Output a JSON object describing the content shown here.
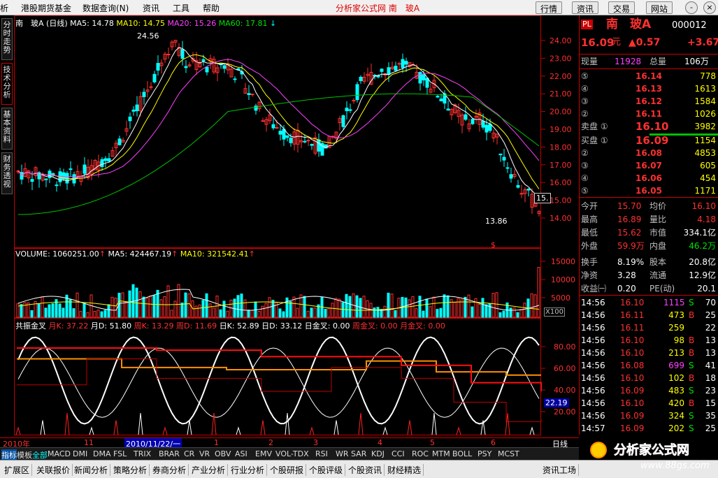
{
  "menu": {
    "items": [
      "析",
      "港股期货基金",
      "数据查询(N)",
      "资讯",
      "工具",
      "帮助"
    ],
    "title": "分析家公式网 南　玻A",
    "right_buttons": [
      "行情",
      "资讯",
      "交易",
      "网站"
    ],
    "window_controls": [
      "-",
      "□",
      "×"
    ]
  },
  "vtabs": [
    "分时走势",
    "技术分析",
    "基本资料",
    "财务透视"
  ],
  "price_panel": {
    "legend": {
      "name": "南　玻A (日线)",
      "ma5": "MA5: 14.78",
      "ma10": "MA10: 14.75",
      "ma20": "MA20: 15.26",
      "ma60": "MA60: 17.81"
    },
    "high_label": "24.56",
    "low_label": "13.86",
    "last_tag": "15.",
    "y_ticks": [
      "24.00",
      "23.00",
      "22.00",
      "21.00",
      "20.00",
      "19.00",
      "18.00",
      "17.00",
      "16.00",
      "15.00",
      "14.00"
    ],
    "event_mark": "$"
  },
  "volume_panel": {
    "legend": {
      "vol": "VOLUME: 1060251.00",
      "ma5": "MA5: 424467.19",
      "ma10": "MA10: 321542.41"
    },
    "y_ticks": [
      "15000",
      "10000",
      "5000"
    ],
    "unit": "X100"
  },
  "kdj_panel": {
    "legend": {
      "name": "共振金叉",
      "mk": "月K: 37.22",
      "md": "月D: 51.80",
      "wk": "周K: 13.29",
      "wd": "周D: 11.69",
      "dk": "日K: 52.89",
      "dd": "日D: 33.12",
      "rj": "日金叉: 0.00",
      "zj": "周金叉: 0.00",
      "yj": "月金叉: 0.00"
    },
    "y_ticks": [
      "80.00",
      "60.00",
      "40.00",
      "20.00"
    ],
    "current": "22.19"
  },
  "time_axis": {
    "labels": [
      "2010年",
      "11",
      "12",
      "1",
      "2",
      "3",
      "4",
      "5",
      "6"
    ],
    "cursor_date": "2010/11/22/一",
    "period": "日线"
  },
  "indicator_tabs": [
    "指标",
    "模板",
    "全部",
    "MACD",
    "DMI",
    "DMA",
    "FSL",
    "TRIX",
    "BRAR",
    "CR",
    "VR",
    "OBV",
    "ASI",
    "EMV",
    "VOL-TDX",
    "RSI",
    "WR",
    "SAR",
    "KDJ",
    "CCI",
    "ROC",
    "MTM",
    "BOLL",
    "PSY",
    "MCST"
  ],
  "bottom_tabs": [
    "扩展区",
    "关联报价",
    "新闻分析",
    "策略分析",
    "券商分析",
    "产业分析",
    "行业分析",
    "个股研报",
    "个股评级",
    "个股资讯",
    "财经精选",
    "资讯工场"
  ],
  "quote": {
    "badge": "PL",
    "name": "南　玻A",
    "code": "000012",
    "price": "16.09",
    "price_unit": "元",
    "change": "▲0.57",
    "change_pct": "+3.67",
    "xianliang_label": "现量",
    "xianliang": "11928",
    "zongliang_label": "总量",
    "zongliang": "106万",
    "sell": [
      {
        "lvl": "⑤",
        "price": "16.14",
        "vol": "778"
      },
      {
        "lvl": "④",
        "price": "16.13",
        "vol": "1613"
      },
      {
        "lvl": "③",
        "price": "16.12",
        "vol": "1584"
      },
      {
        "lvl": "②",
        "price": "16.11",
        "vol": "1026"
      },
      {
        "lvl": "卖盘 ①",
        "price": "16.10",
        "vol": "3982"
      }
    ],
    "buy": [
      {
        "lvl": "买盘 ①",
        "price": "16.09",
        "vol": "1154"
      },
      {
        "lvl": "②",
        "price": "16.08",
        "vol": "4853"
      },
      {
        "lvl": "③",
        "price": "16.07",
        "vol": "605"
      },
      {
        "lvl": "④",
        "price": "16.06",
        "vol": "454"
      },
      {
        "lvl": "⑤",
        "price": "16.05",
        "vol": "1171"
      }
    ],
    "stats": [
      {
        "l1": "今开",
        "v1": "15.70",
        "c1": "red",
        "l2": "均价",
        "v2": "16.10",
        "c2": "red"
      },
      {
        "l1": "最高",
        "v1": "16.89",
        "c1": "red",
        "l2": "量比",
        "v2": "4.18",
        "c2": "red"
      },
      {
        "l1": "最低",
        "v1": "15.62",
        "c1": "red",
        "l2": "市值",
        "v2": "334.1亿",
        "c2": "white"
      },
      {
        "l1": "外盘",
        "v1": "59.9万",
        "c1": "red",
        "l2": "内盘",
        "v2": "46.2万",
        "c2": "green"
      },
      {
        "l1": "换手",
        "v1": "8.19%",
        "c1": "white",
        "l2": "股本",
        "v2": "20.8亿",
        "c2": "white"
      },
      {
        "l1": "净资",
        "v1": "3.28",
        "c1": "white",
        "l2": "流通",
        "v2": "12.9亿",
        "c2": "white"
      },
      {
        "l1": "收益㈠",
        "v1": "0.20",
        "c1": "white",
        "l2": "PE(动)",
        "v2": "20.1",
        "c2": "white"
      }
    ],
    "ticks": [
      {
        "t": "14:56",
        "p": "16.10",
        "v": "1115",
        "bs": "S",
        "n": "70"
      },
      {
        "t": "14:56",
        "p": "16.11",
        "v": "473",
        "bs": "B",
        "n": "25"
      },
      {
        "t": "14:56",
        "p": "16.11",
        "v": "259",
        "bs": "",
        "n": "22"
      },
      {
        "t": "14:56",
        "p": "16.10",
        "v": "98",
        "bs": "B",
        "n": "13"
      },
      {
        "t": "14:56",
        "p": "16.10",
        "v": "213",
        "bs": "B",
        "n": "13"
      },
      {
        "t": "14:56",
        "p": "16.08",
        "v": "699",
        "bs": "S",
        "n": "41"
      },
      {
        "t": "14:56",
        "p": "16.10",
        "v": "102",
        "bs": "B",
        "n": "18"
      },
      {
        "t": "14:56",
        "p": "16.09",
        "v": "483",
        "bs": "S",
        "n": "23"
      },
      {
        "t": "14:56",
        "p": "16.10",
        "v": "420",
        "bs": "B",
        "n": "15"
      },
      {
        "t": "14:56",
        "p": "16.09",
        "v": "324",
        "bs": "S",
        "n": "35"
      },
      {
        "t": "14:57",
        "p": "16.09",
        "v": "202",
        "bs": "S",
        "n": "25"
      }
    ]
  },
  "logo": {
    "main": "分析家公式网",
    "url": "www.88gs.com"
  },
  "colors": {
    "up": "#ff3030",
    "down": "#00ffff",
    "ma5": "#ffffff",
    "ma10": "#ffff00",
    "ma20": "#ff40ff",
    "ma60": "#00c000",
    "frame": "#c00000"
  }
}
